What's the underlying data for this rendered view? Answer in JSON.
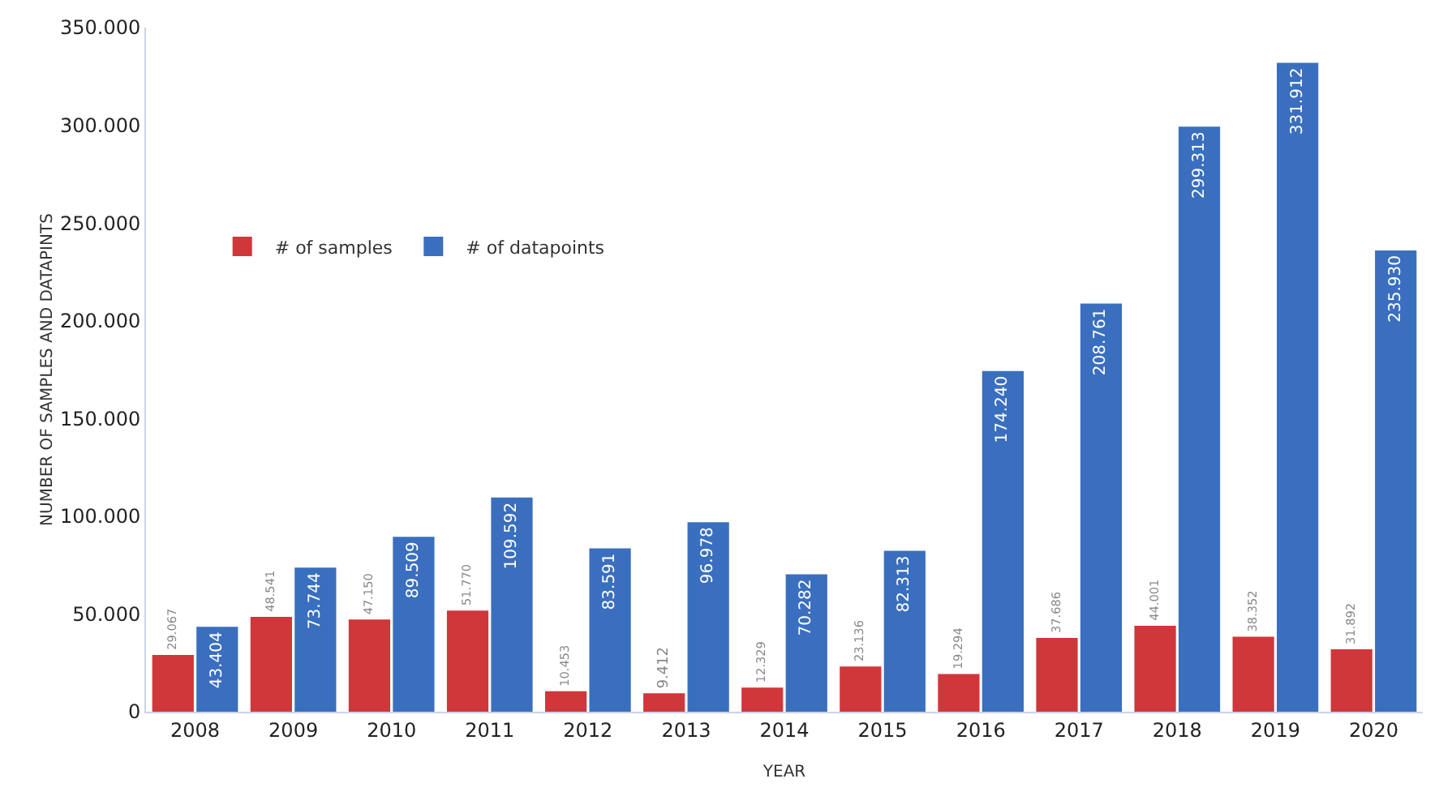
{
  "chart_data": {
    "type": "bar",
    "xlabel": "YEAR",
    "ylabel": "NUMBER OF SAMPLES AND DATAPINTS",
    "categories": [
      "2008",
      "2009",
      "2010",
      "2011",
      "2012",
      "2013",
      "2014",
      "2015",
      "2016",
      "2017",
      "2018",
      "2019",
      "2020"
    ],
    "series": [
      {
        "name": "# of samples",
        "color": "#d0373a",
        "values": [
          29067,
          48541,
          47150,
          51770,
          10453,
          9412,
          12329,
          23136,
          19294,
          37686,
          44001,
          38352,
          31892
        ],
        "value_labels": [
          "29.067",
          "48.541",
          "47.150",
          "51.770",
          "10.453",
          "9.412",
          "12.329",
          "23.136",
          "19.294",
          "37.686",
          "44.001",
          "38.352",
          "31.892"
        ]
      },
      {
        "name": "# of datapoints",
        "color": "#3a6fbf",
        "values": [
          43404,
          73744,
          89509,
          109592,
          83591,
          96978,
          70282,
          82313,
          174240,
          208761,
          299313,
          331912,
          235930
        ],
        "value_labels": [
          "43.404",
          "73.744",
          "89.509",
          "109.592",
          "83.591",
          "96.978",
          "70.282",
          "82.313",
          "174.240",
          "208.761",
          "299.313",
          "331.912",
          "235.930"
        ]
      }
    ],
    "ylim": [
      0,
      350000
    ],
    "yticks": [
      0,
      {
        "value": 50000,
        "label": "50.000"
      },
      {
        "value": 100000,
        "label": "100.000"
      },
      {
        "value": 150000,
        "label": "150.000"
      },
      {
        "value": 200000,
        "label": "200.000"
      },
      {
        "value": 250000,
        "label": "250.000"
      },
      {
        "value": 300000,
        "label": "300.000"
      },
      {
        "value": 350000,
        "label": "350.000"
      }
    ],
    "grid": false,
    "legend": "left"
  }
}
